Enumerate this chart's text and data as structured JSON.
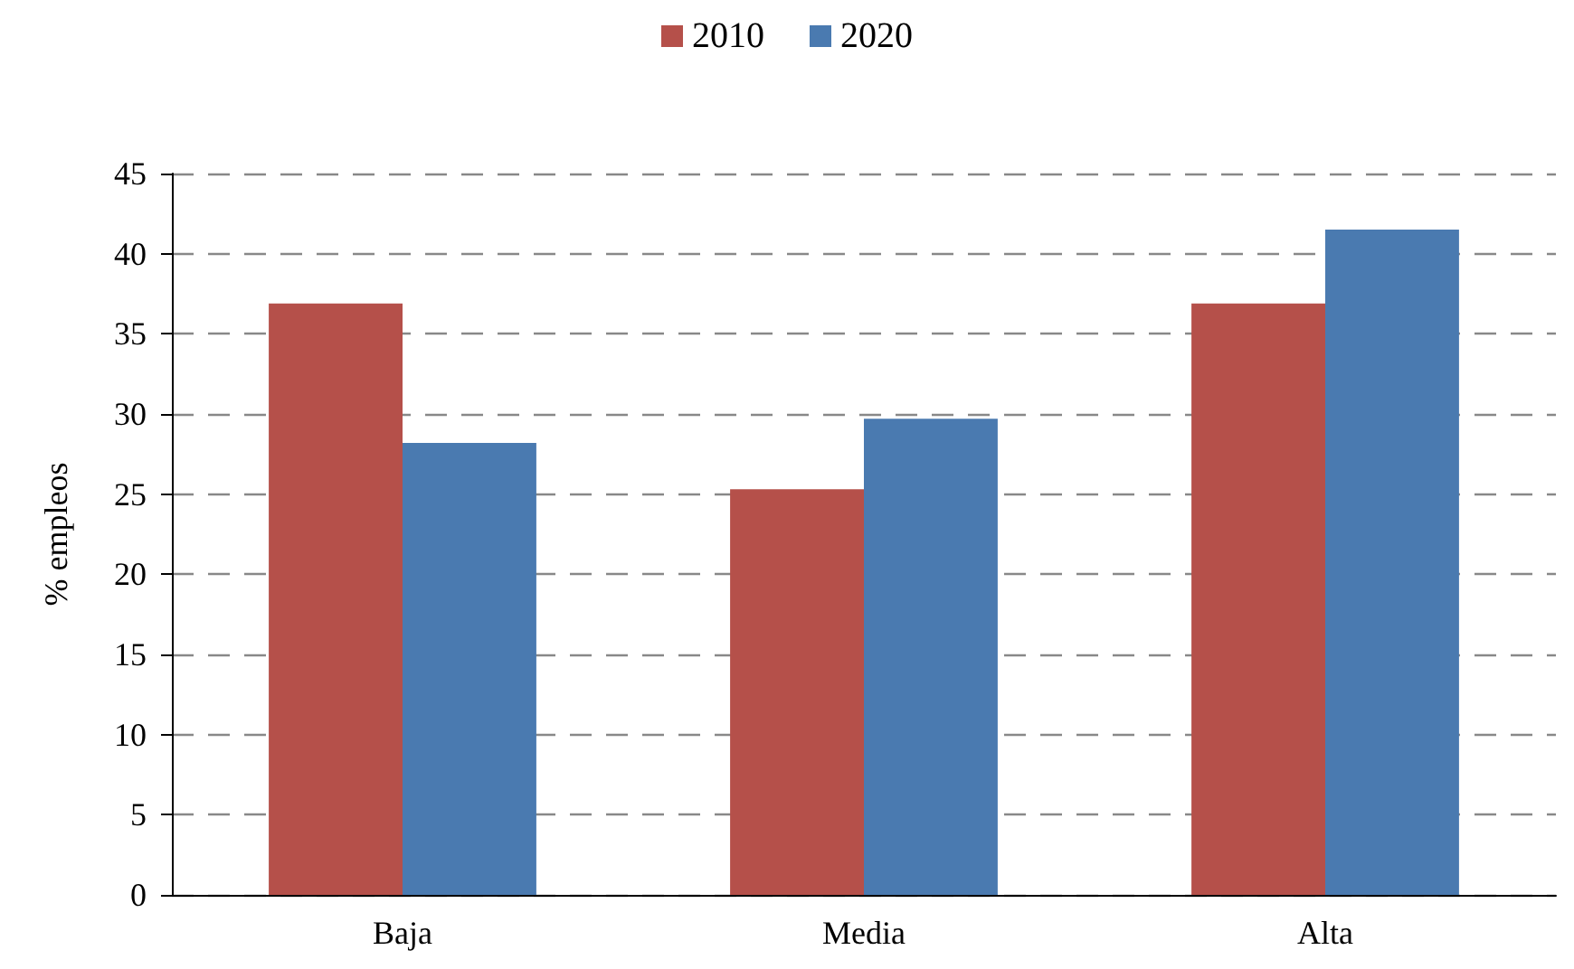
{
  "chart_data": {
    "type": "bar",
    "ylabel": "% empleos",
    "categories": [
      "Baja",
      "Media",
      "Alta"
    ],
    "series": [
      {
        "name": "2010",
        "color": "#b5504a",
        "values": [
          36.9,
          25.3,
          36.9
        ]
      },
      {
        "name": "2020",
        "color": "#4a7ab0",
        "values": [
          28.2,
          29.7,
          41.5
        ]
      }
    ],
    "ylim": [
      0,
      45
    ],
    "yticks": [
      0,
      5,
      10,
      15,
      20,
      25,
      30,
      35,
      40,
      45
    ],
    "grid": "y",
    "line_style": "dashed",
    "legend": "top"
  }
}
